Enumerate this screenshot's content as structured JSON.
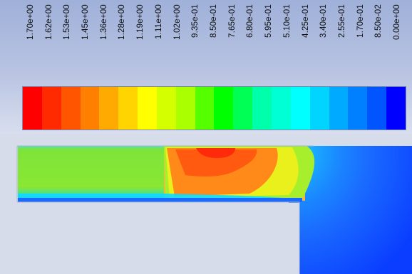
{
  "legend": {
    "ticks": [
      "1.70e+00",
      "1.62e+00",
      "1.53e+00",
      "1.45e+00",
      "1.36e+00",
      "1.28e+00",
      "1.19e+00",
      "1.11e+00",
      "1.02e+00",
      "9.35e-01",
      "8.50e-01",
      "7.65e-01",
      "6.80e-01",
      "5.95e-01",
      "5.10e-01",
      "4.25e-01",
      "3.40e-01",
      "2.55e-01",
      "1.70e-01",
      "8.50e-02",
      "0.00e+00"
    ],
    "colors": [
      "#ff0000",
      "#ff2a00",
      "#ff5500",
      "#ff8000",
      "#ffaa00",
      "#ffd400",
      "#ffff00",
      "#d4ff00",
      "#aaff00",
      "#55ff00",
      "#00ff00",
      "#00ff55",
      "#00ffaa",
      "#00ffd4",
      "#00ffff",
      "#00d4ff",
      "#00aaff",
      "#0080ff",
      "#0055ff",
      "#0000ff"
    ]
  },
  "contour": {
    "solid_color": "#d6dcea",
    "fluid_palette": {
      "green": "#7ee43a",
      "dark_green": "#55d23a",
      "yellow_green": "#a7ef2c",
      "yellow": "#e9f01b",
      "orange": "#ff8a1a",
      "red_orange": "#ff5a10",
      "red": "#ff2a0a",
      "cyan": "#10d9ff",
      "blue_light": "#1aa8ff",
      "blue": "#1a6aff",
      "blue_dark": "#0a3dff"
    }
  }
}
